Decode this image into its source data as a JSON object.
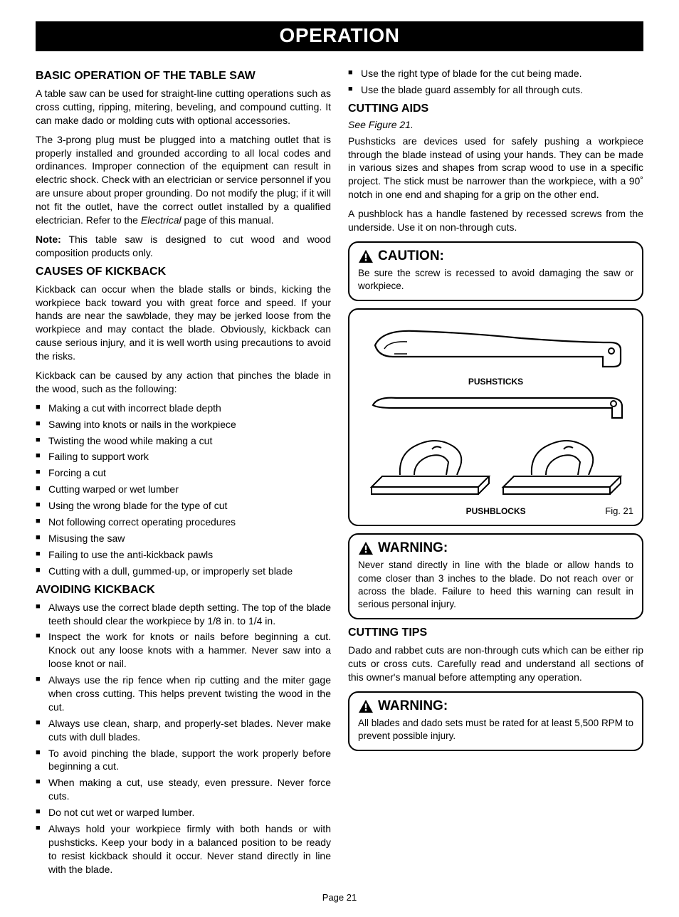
{
  "banner": "OPERATION",
  "left": {
    "sec1_title": "BASIC OPERATION OF THE TABLE SAW",
    "sec1_p1": "A table saw can be used for straight-line cutting operations such as cross cutting, ripping, mitering, beveling, and compound cutting. It can make dado or molding cuts with optional accessories.",
    "sec1_p2a": "The 3-prong plug must be plugged into a matching outlet that is properly installed and grounded according to all local codes and ordinances. Improper connection of the equipment can result in electric shock. Check with an electrician or service personnel if you are unsure about proper grounding. Do not modify the plug; if it will not fit the outlet, have the correct outlet installed by a qualified electrician. Refer to the ",
    "sec1_p2_em": "Electrical",
    "sec1_p2b": " page of this manual.",
    "sec1_note_label": "Note:",
    "sec1_note_text": " This table saw is designed to cut wood and wood composition products only.",
    "sec2_title": "CAUSES OF KICKBACK",
    "sec2_p1": "Kickback can occur when the blade stalls or binds, kicking the workpiece back toward you with great force and speed. If your hands are near the sawblade, they may be jerked loose from the workpiece and may contact the blade. Obviously, kickback can cause serious injury, and it is well worth using precautions to avoid the risks.",
    "sec2_p2": "Kickback can be caused by any action that pinches the blade in the wood, such as the following:",
    "sec2_list": [
      "Making a cut with incorrect blade depth",
      "Sawing into knots or nails in the workpiece",
      "Twisting the wood while making a cut",
      "Failing to support work",
      "Forcing a cut",
      "Cutting warped or wet lumber",
      "Using the wrong blade for the type of cut",
      "Not following correct operating procedures",
      "Misusing the saw",
      "Failing to use the anti-kickback pawls",
      "Cutting with a dull, gummed-up, or improperly set blade"
    ],
    "sec3_title": "AVOIDING KICKBACK",
    "sec3_list": [
      "Always use the correct blade depth setting. The top of the blade teeth should clear the workpiece by 1/8 in. to 1/4 in.",
      "Inspect the work for knots or nails before beginning a cut. Knock out any loose knots with a hammer. Never saw into a loose knot or nail.",
      "Always use the rip fence when rip cutting and the miter gage when cross cutting. This helps prevent twisting the wood in the cut.",
      "Always use clean, sharp, and properly-set blades. Never make cuts with dull blades.",
      "To avoid pinching the blade, support the work properly before beginning a cut.",
      "When making a cut, use steady, even pressure. Never force cuts.",
      "Do not cut wet or warped lumber.",
      "Always hold your workpiece firmly with both hands or with pushsticks. Keep your body in a balanced position to be ready to resist kickback should it occur. Never stand directly in line with the blade."
    ]
  },
  "right": {
    "top_list": [
      "Use the right type of blade for the cut being made.",
      "Use the blade guard assembly for all through cuts."
    ],
    "sec4_title": "CUTTING AIDS",
    "sec4_seefig": "See Figure 21.",
    "sec4_p1": "Pushsticks are devices used for safely pushing a workpiece through the blade instead of using your hands. They can be made in various sizes and shapes from scrap wood to use in a specific project. The stick must be narrower than the workpiece, with a 90˚ notch in one end and shaping for a grip on the other end.",
    "sec4_p2": "A pushblock has a handle fastened by recessed screws from the underside. Use it on non-through cuts.",
    "caution_title": "CAUTION:",
    "caution_text": "Be sure the screw is recessed to avoid damaging the saw or workpiece.",
    "fig_label1": "PUSHSTICKS",
    "fig_label2": "PUSHBLOCKS",
    "fig_caption": "Fig. 21",
    "warn1_title": "WARNING:",
    "warn1_text": "Never stand directly in line with the blade or allow hands to come closer than 3 inches to the blade. Do not reach over or across the blade. Failure to heed this warning can result in serious personal injury.",
    "sec5_title": "CUTTING TIPS",
    "sec5_p1": "Dado and rabbet cuts are non-through cuts which can be either rip cuts or cross cuts. Carefully read and understand all sections of this owner's manual before attempting any operation.",
    "warn2_title": "WARNING:",
    "warn2_text": "All blades and dado sets must be rated for at least 5,500 RPM to prevent possible injury."
  },
  "page_footer": "Page 21",
  "colors": {
    "black": "#000000",
    "white": "#ffffff"
  }
}
